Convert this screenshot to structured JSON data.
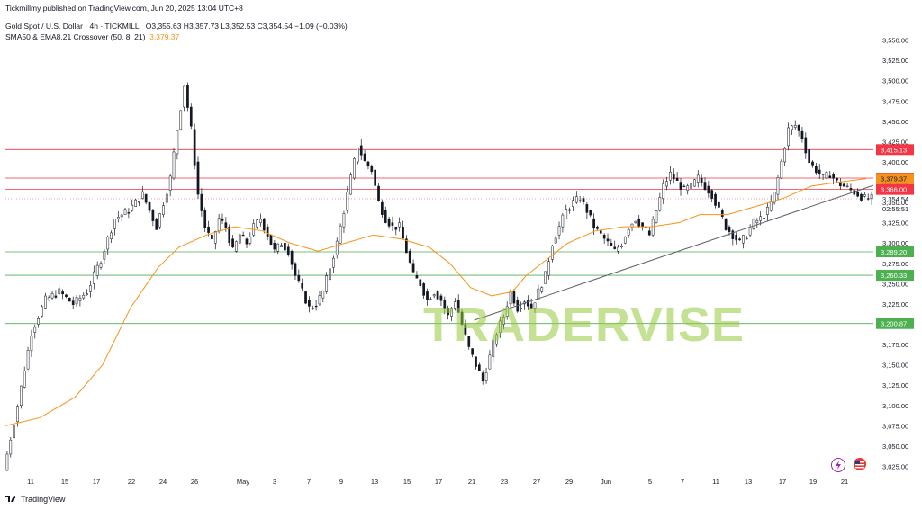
{
  "header": {
    "published": "Tickmillmy published on TradingView.com, Jun 20, 2025 13:04 UTC+8",
    "symbol": "Gold Spot / U.S. Dollar · 4h · TICKMILL",
    "ohlc": "O3,355.63  H3,357.73  L3,352.53  C3,354.54  −1.09 (−0.03%)",
    "indicator": "SMA50 & EMA8,21 Crossover (50, 8, 21)",
    "indicator_value": "3,379.37"
  },
  "footer": {
    "brand": "TradingView"
  },
  "watermark": {
    "text_a": "TRADER",
    "text_b": "VISE"
  },
  "icons": {
    "bolt": "lightning-icon",
    "flag": "us-flag-icon",
    "logo": "tradingview-logo-icon"
  },
  "colors": {
    "up": "#26a69a",
    "down": "#131722",
    "candle_up_fill": "#ffffff",
    "candle_down_fill": "#131722",
    "sma": "#f7931a",
    "resistance": "#f23645",
    "support": "#4caf50",
    "trendline": "#5d606b",
    "price_tag": "#131722",
    "grid_text": "#131722"
  },
  "chart_data": {
    "type": "line",
    "title": "Gold Spot / U.S. Dollar · 4h · TICKMILL",
    "ylim": [
      3010,
      3575
    ],
    "y_ticks": [
      3025,
      3050,
      3075,
      3100,
      3125,
      3150,
      3175,
      3200,
      3225,
      3250,
      3275,
      3300,
      3325,
      3350,
      3375,
      3400,
      3425,
      3450,
      3475,
      3500,
      3525,
      3550
    ],
    "y_tick_labels": [
      "3,025.00",
      "3,050.00",
      "3,075.00",
      "3,100.00",
      "3,125.00",
      "3,150.00",
      "3,175.00",
      "3,200.00",
      "3,225.00",
      "3,250.00",
      "3,275.00",
      "3,300.00",
      "3,325.00",
      "3,350.00",
      "3,375.00",
      "3,400.00",
      "3,425.00",
      "3,450.00",
      "3,475.00",
      "3,500.00",
      "3,525.00",
      "3,550.00"
    ],
    "x_tick_labels": [
      "11",
      "15",
      "17",
      "22",
      "24",
      "26",
      "May",
      "3",
      "7",
      "9",
      "13",
      "15",
      "17",
      "21",
      "23",
      "27",
      "29",
      "Jun",
      "5",
      "7",
      "11",
      "13",
      "17",
      "19",
      "21"
    ],
    "grid": false,
    "price_path": [
      [
        0,
        3020
      ],
      [
        8,
        3100
      ],
      [
        16,
        3190
      ],
      [
        24,
        3230
      ],
      [
        32,
        3240
      ],
      [
        40,
        3225
      ],
      [
        48,
        3240
      ],
      [
        56,
        3280
      ],
      [
        64,
        3330
      ],
      [
        72,
        3340
      ],
      [
        80,
        3360
      ],
      [
        88,
        3320
      ],
      [
        96,
        3380
      ],
      [
        100,
        3440
      ],
      [
        104,
        3495
      ],
      [
        108,
        3440
      ],
      [
        112,
        3360
      ],
      [
        116,
        3320
      ],
      [
        120,
        3300
      ],
      [
        124,
        3330
      ],
      [
        128,
        3320
      ],
      [
        132,
        3290
      ],
      [
        136,
        3310
      ],
      [
        140,
        3300
      ],
      [
        144,
        3320
      ],
      [
        148,
        3330
      ],
      [
        152,
        3310
      ],
      [
        156,
        3290
      ],
      [
        160,
        3300
      ],
      [
        164,
        3290
      ],
      [
        168,
        3260
      ],
      [
        172,
        3240
      ],
      [
        176,
        3220
      ],
      [
        180,
        3225
      ],
      [
        184,
        3240
      ],
      [
        188,
        3270
      ],
      [
        192,
        3300
      ],
      [
        196,
        3340
      ],
      [
        200,
        3380
      ],
      [
        204,
        3420
      ],
      [
        208,
        3400
      ],
      [
        212,
        3390
      ],
      [
        216,
        3350
      ],
      [
        220,
        3330
      ],
      [
        224,
        3320
      ],
      [
        228,
        3320
      ],
      [
        232,
        3290
      ],
      [
        236,
        3260
      ],
      [
        240,
        3250
      ],
      [
        244,
        3230
      ],
      [
        248,
        3240
      ],
      [
        252,
        3230
      ],
      [
        256,
        3210
      ],
      [
        260,
        3230
      ],
      [
        264,
        3200
      ],
      [
        268,
        3170
      ],
      [
        272,
        3150
      ],
      [
        276,
        3130
      ],
      [
        280,
        3160
      ],
      [
        284,
        3190
      ],
      [
        288,
        3210
      ],
      [
        292,
        3240
      ],
      [
        296,
        3220
      ],
      [
        300,
        3230
      ],
      [
        304,
        3220
      ],
      [
        308,
        3240
      ],
      [
        312,
        3260
      ],
      [
        316,
        3300
      ],
      [
        320,
        3320
      ],
      [
        324,
        3340
      ],
      [
        328,
        3350
      ],
      [
        332,
        3355
      ],
      [
        336,
        3340
      ],
      [
        340,
        3320
      ],
      [
        344,
        3310
      ],
      [
        348,
        3300
      ],
      [
        352,
        3290
      ],
      [
        356,
        3300
      ],
      [
        360,
        3320
      ],
      [
        364,
        3330
      ],
      [
        368,
        3320
      ],
      [
        372,
        3310
      ],
      [
        376,
        3340
      ],
      [
        380,
        3370
      ],
      [
        384,
        3385
      ],
      [
        388,
        3375
      ],
      [
        392,
        3365
      ],
      [
        396,
        3370
      ],
      [
        400,
        3380
      ],
      [
        404,
        3370
      ],
      [
        408,
        3360
      ],
      [
        412,
        3340
      ],
      [
        416,
        3320
      ],
      [
        420,
        3310
      ],
      [
        424,
        3300
      ],
      [
        428,
        3310
      ],
      [
        432,
        3325
      ],
      [
        436,
        3330
      ],
      [
        440,
        3340
      ],
      [
        444,
        3360
      ],
      [
        448,
        3400
      ],
      [
        452,
        3440
      ],
      [
        456,
        3445
      ],
      [
        460,
        3430
      ],
      [
        464,
        3400
      ],
      [
        468,
        3390
      ],
      [
        472,
        3380
      ],
      [
        476,
        3385
      ],
      [
        480,
        3375
      ],
      [
        484,
        3370
      ],
      [
        488,
        3365
      ],
      [
        492,
        3360
      ],
      [
        496,
        3355
      ]
    ],
    "series": [
      {
        "name": "SMA50",
        "values": [
          [
            0,
            3075
          ],
          [
            20,
            3085
          ],
          [
            40,
            3110
          ],
          [
            56,
            3150
          ],
          [
            72,
            3220
          ],
          [
            88,
            3270
          ],
          [
            100,
            3295
          ],
          [
            116,
            3310
          ],
          [
            132,
            3320
          ],
          [
            148,
            3315
          ],
          [
            164,
            3300
          ],
          [
            180,
            3290
          ],
          [
            196,
            3300
          ],
          [
            212,
            3310
          ],
          [
            228,
            3305
          ],
          [
            244,
            3295
          ],
          [
            256,
            3275
          ],
          [
            268,
            3245
          ],
          [
            280,
            3235
          ],
          [
            292,
            3240
          ],
          [
            300,
            3260
          ],
          [
            312,
            3280
          ],
          [
            324,
            3300
          ],
          [
            340,
            3315
          ],
          [
            356,
            3320
          ],
          [
            372,
            3320
          ],
          [
            388,
            3325
          ],
          [
            400,
            3335
          ],
          [
            416,
            3335
          ],
          [
            432,
            3345
          ],
          [
            448,
            3355
          ],
          [
            464,
            3370
          ],
          [
            480,
            3375
          ],
          [
            496,
            3379.37
          ]
        ]
      }
    ],
    "levels": [
      {
        "value": 3415.13,
        "label": "3,415.13",
        "kind": "resistance"
      },
      {
        "value": 3380.0,
        "label": "3,380.00",
        "kind": "resistance"
      },
      {
        "value": 3366.0,
        "label": "3,366.00",
        "kind": "resistance"
      },
      {
        "value": 3289.2,
        "label": "3,289.20",
        "kind": "support"
      },
      {
        "value": 3260.33,
        "label": "3,260.33",
        "kind": "support"
      },
      {
        "value": 3200.87,
        "label": "3,200.87",
        "kind": "support"
      }
    ],
    "sma_tag": {
      "value": 3379.37,
      "label": "3,379.37"
    },
    "current_price": {
      "value": 3354.54,
      "label": "3,354.54",
      "countdown": "02:55:51"
    },
    "trendline": {
      "from": [
        270,
        3205
      ],
      "to": [
        500,
        3371
      ]
    }
  }
}
